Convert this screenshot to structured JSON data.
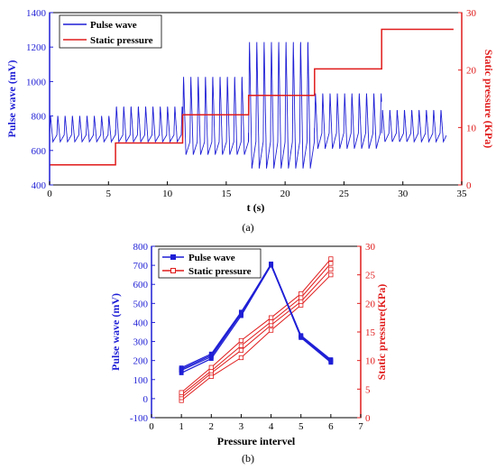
{
  "chart_data": [
    {
      "type": "line",
      "caption": "(a)",
      "xlabel": "t (s)",
      "ylabel": "Pulse wave (mV)",
      "y2label": "Static pressure (KPa)",
      "xlim": [
        0,
        35
      ],
      "ylim": [
        400,
        1400
      ],
      "y2lim": [
        0,
        30
      ],
      "xticks": [
        "0",
        "5",
        "10",
        "15",
        "20",
        "25",
        "30",
        "35"
      ],
      "yticks": [
        "400",
        "600",
        "800",
        "1000",
        "1200",
        "1400"
      ],
      "y2ticks": [
        "0",
        "10",
        "20",
        "30"
      ],
      "legend_position": "top-left",
      "series": [
        {
          "name": "Pulse wave",
          "color": "#1f1fd6",
          "axis": "left",
          "segments": [
            {
              "t_start": 0.0,
              "t_end": 5.6,
              "baseline": 690,
              "peak": 805,
              "trough": 650
            },
            {
              "t_start": 5.6,
              "t_end": 11.3,
              "baseline": 690,
              "peak": 860,
              "trough": 650
            },
            {
              "t_start": 11.3,
              "t_end": 16.9,
              "baseline": 650,
              "peak": 1040,
              "trough": 575
            },
            {
              "t_start": 16.9,
              "t_end": 22.5,
              "baseline": 650,
              "peak": 1250,
              "trough": 495
            },
            {
              "t_start": 22.5,
              "t_end": 28.2,
              "baseline": 700,
              "peak": 940,
              "trough": 610
            },
            {
              "t_start": 28.2,
              "t_end": 33.7,
              "baseline": 700,
              "peak": 840,
              "trough": 650
            }
          ]
        },
        {
          "name": "Static pressure",
          "color": "#e01b1b",
          "axis": "right",
          "steps": [
            {
              "t_start": 0.0,
              "t_end": 5.6,
              "value": 3.5
            },
            {
              "t_start": 5.6,
              "t_end": 11.3,
              "value": 7.3
            },
            {
              "t_start": 11.3,
              "t_end": 16.9,
              "value": 12.2
            },
            {
              "t_start": 16.9,
              "t_end": 22.5,
              "value": 15.6
            },
            {
              "t_start": 22.5,
              "t_end": 28.2,
              "value": 20.2
            },
            {
              "t_start": 28.2,
              "t_end": 34.3,
              "value": 27.1
            }
          ]
        }
      ]
    },
    {
      "type": "line",
      "caption": "(b)",
      "xlabel": "Pressure intervel",
      "ylabel": "Pulse wave (mV)",
      "y2label": "Static pressure(KPa)",
      "xlim": [
        0,
        7
      ],
      "ylim": [
        -100,
        800
      ],
      "y2lim": [
        0,
        30
      ],
      "xticks": [
        "0",
        "1",
        "2",
        "3",
        "4",
        "5",
        "6",
        "7"
      ],
      "yticks": [
        "-100",
        "0",
        "100",
        "200",
        "300",
        "400",
        "500",
        "600",
        "700",
        "800"
      ],
      "y2ticks": [
        "0",
        "5",
        "10",
        "15",
        "20",
        "25",
        "30"
      ],
      "legend_position": "top-left",
      "series": [
        {
          "name": "Pulse wave",
          "color": "#1f1fd6",
          "axis": "left",
          "marker": "filled-square",
          "x": [
            1,
            2,
            3,
            4,
            5,
            6
          ],
          "runs": [
            [
              135,
              210,
              435,
              700,
              320,
              190
            ],
            [
              148,
              220,
              445,
              705,
              325,
              195
            ],
            [
              155,
              228,
              450,
              708,
              330,
              200
            ],
            [
              162,
              235,
              455,
              700,
              332,
              205
            ]
          ]
        },
        {
          "name": "Static pressure",
          "color": "#e01b1b",
          "axis": "right",
          "marker": "open-square",
          "x": [
            1,
            2,
            3,
            4,
            5,
            6
          ],
          "runs": [
            [
              3.0,
              7.2,
              10.5,
              15.3,
              19.7,
              25.0
            ],
            [
              3.5,
              7.8,
              11.8,
              16.2,
              20.3,
              26.0
            ],
            [
              4.0,
              8.2,
              12.6,
              16.8,
              21.0,
              27.0
            ],
            [
              4.4,
              8.8,
              13.5,
              17.5,
              21.7,
              27.8
            ]
          ]
        }
      ]
    }
  ]
}
